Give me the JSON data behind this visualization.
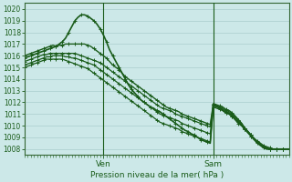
{
  "title": "Pression niveau de la mer( hPa )",
  "bg_color": "#cce8e8",
  "grid_color": "#aacece",
  "line_color": "#1a5c1a",
  "spine_color": "#336633",
  "ylim": [
    1007.5,
    1020.5
  ],
  "yticks": [
    1008,
    1009,
    1010,
    1011,
    1012,
    1013,
    1014,
    1015,
    1016,
    1017,
    1018,
    1019,
    1020
  ],
  "xtick_labels": [
    "Ven",
    "Sam"
  ],
  "xtick_positions": [
    25,
    60
  ],
  "vline_positions": [
    25,
    60
  ],
  "n_points": 85,
  "series": [
    [
      1015.8,
      1015.9,
      1016.0,
      1016.1,
      1016.2,
      1016.3,
      1016.4,
      1016.5,
      1016.6,
      1016.7,
      1016.8,
      1017.0,
      1017.2,
      1017.5,
      1018.0,
      1018.5,
      1019.0,
      1019.3,
      1019.5,
      1019.5,
      1019.4,
      1019.2,
      1019.0,
      1018.7,
      1018.3,
      1017.8,
      1017.2,
      1016.5,
      1016.0,
      1015.5,
      1015.0,
      1014.5,
      1014.0,
      1013.5,
      1013.1,
      1012.8,
      1012.5,
      1012.2,
      1012.0,
      1011.8,
      1011.6,
      1011.5,
      1011.3,
      1011.2,
      1011.0,
      1010.8,
      1010.6,
      1010.4,
      1010.2,
      1010.0,
      1009.8,
      1009.6,
      1009.5,
      1009.3,
      1009.2,
      1009.0,
      1008.8,
      1008.7,
      1008.6,
      1008.5,
      1011.8,
      1011.7,
      1011.5,
      1011.3,
      1011.1,
      1011.0,
      1010.8,
      1010.5,
      1010.2,
      1010.0,
      1009.7,
      1009.4,
      1009.1,
      1008.8,
      1008.5,
      1008.3,
      1008.1,
      1008.0,
      1008.0,
      1008.0,
      1008.0,
      1008.0,
      1008.0,
      1008.0,
      1008.0
    ],
    [
      1016.0,
      1016.1,
      1016.2,
      1016.3,
      1016.4,
      1016.5,
      1016.6,
      1016.7,
      1016.8,
      1016.9,
      1016.8,
      1016.9,
      1016.9,
      1017.0,
      1017.0,
      1017.0,
      1017.0,
      1017.0,
      1017.0,
      1017.0,
      1016.9,
      1016.8,
      1016.6,
      1016.4,
      1016.2,
      1016.0,
      1015.8,
      1015.5,
      1015.2,
      1015.0,
      1014.8,
      1014.5,
      1014.2,
      1014.0,
      1013.8,
      1013.6,
      1013.4,
      1013.2,
      1013.0,
      1012.8,
      1012.6,
      1012.4,
      1012.2,
      1012.0,
      1011.8,
      1011.6,
      1011.5,
      1011.4,
      1011.3,
      1011.2,
      1011.0,
      1010.9,
      1010.8,
      1010.7,
      1010.6,
      1010.5,
      1010.4,
      1010.3,
      1010.2,
      1010.1,
      1011.9,
      1011.8,
      1011.7,
      1011.6,
      1011.4,
      1011.3,
      1011.1,
      1010.8,
      1010.5,
      1010.2,
      1009.8,
      1009.5,
      1009.2,
      1008.9,
      1008.6,
      1008.4,
      1008.2,
      1008.1,
      1008.0,
      1008.0,
      1008.0,
      1008.0,
      1008.0,
      1008.0,
      1008.0
    ],
    [
      1015.5,
      1015.6,
      1015.7,
      1015.8,
      1015.9,
      1016.0,
      1016.1,
      1016.1,
      1016.2,
      1016.2,
      1016.2,
      1016.2,
      1016.2,
      1016.2,
      1016.2,
      1016.2,
      1016.2,
      1016.1,
      1016.0,
      1015.9,
      1015.8,
      1015.7,
      1015.6,
      1015.5,
      1015.4,
      1015.2,
      1015.0,
      1014.8,
      1014.6,
      1014.4,
      1014.2,
      1014.0,
      1013.8,
      1013.6,
      1013.4,
      1013.2,
      1013.0,
      1012.8,
      1012.6,
      1012.4,
      1012.2,
      1012.0,
      1011.8,
      1011.6,
      1011.5,
      1011.4,
      1011.3,
      1011.2,
      1011.0,
      1010.9,
      1010.8,
      1010.7,
      1010.6,
      1010.5,
      1010.4,
      1010.3,
      1010.2,
      1010.1,
      1010.0,
      1009.9,
      1011.8,
      1011.7,
      1011.6,
      1011.5,
      1011.3,
      1011.2,
      1011.0,
      1010.8,
      1010.5,
      1010.2,
      1009.8,
      1009.5,
      1009.2,
      1008.9,
      1008.7,
      1008.5,
      1008.3,
      1008.2,
      1008.1,
      1008.0,
      1008.0,
      1008.0,
      1008.0,
      1008.0,
      1008.0
    ],
    [
      1015.2,
      1015.3,
      1015.4,
      1015.5,
      1015.6,
      1015.7,
      1015.8,
      1015.9,
      1015.9,
      1016.0,
      1016.0,
      1016.0,
      1016.0,
      1015.9,
      1015.9,
      1015.8,
      1015.8,
      1015.7,
      1015.6,
      1015.5,
      1015.4,
      1015.3,
      1015.2,
      1015.0,
      1014.8,
      1014.6,
      1014.4,
      1014.2,
      1014.0,
      1013.8,
      1013.6,
      1013.4,
      1013.2,
      1013.0,
      1012.8,
      1012.6,
      1012.4,
      1012.2,
      1012.0,
      1011.8,
      1011.6,
      1011.4,
      1011.2,
      1011.0,
      1010.9,
      1010.8,
      1010.7,
      1010.6,
      1010.5,
      1010.4,
      1010.2,
      1010.1,
      1010.0,
      1009.9,
      1009.8,
      1009.7,
      1009.6,
      1009.5,
      1009.4,
      1009.3,
      1011.7,
      1011.6,
      1011.5,
      1011.4,
      1011.2,
      1011.1,
      1010.9,
      1010.7,
      1010.4,
      1010.1,
      1009.8,
      1009.5,
      1009.2,
      1008.9,
      1008.6,
      1008.4,
      1008.2,
      1008.1,
      1008.0,
      1008.0,
      1008.0,
      1008.0,
      1008.0,
      1008.0,
      1008.0
    ],
    [
      1015.0,
      1015.1,
      1015.2,
      1015.3,
      1015.4,
      1015.5,
      1015.6,
      1015.7,
      1015.7,
      1015.7,
      1015.7,
      1015.7,
      1015.7,
      1015.6,
      1015.5,
      1015.4,
      1015.3,
      1015.2,
      1015.1,
      1015.0,
      1014.9,
      1014.7,
      1014.5,
      1014.3,
      1014.1,
      1013.9,
      1013.7,
      1013.5,
      1013.3,
      1013.1,
      1012.9,
      1012.7,
      1012.5,
      1012.3,
      1012.1,
      1011.9,
      1011.7,
      1011.5,
      1011.3,
      1011.1,
      1010.9,
      1010.7,
      1010.5,
      1010.3,
      1010.2,
      1010.1,
      1010.0,
      1009.9,
      1009.8,
      1009.7,
      1009.5,
      1009.4,
      1009.3,
      1009.2,
      1009.1,
      1009.0,
      1008.9,
      1008.8,
      1008.7,
      1008.6,
      1011.6,
      1011.5,
      1011.4,
      1011.3,
      1011.1,
      1011.0,
      1010.8,
      1010.6,
      1010.3,
      1010.0,
      1009.7,
      1009.4,
      1009.1,
      1008.8,
      1008.6,
      1008.4,
      1008.2,
      1008.0,
      1008.0,
      1008.0,
      1008.0,
      1008.0,
      1008.0,
      1008.0,
      1008.0
    ]
  ]
}
